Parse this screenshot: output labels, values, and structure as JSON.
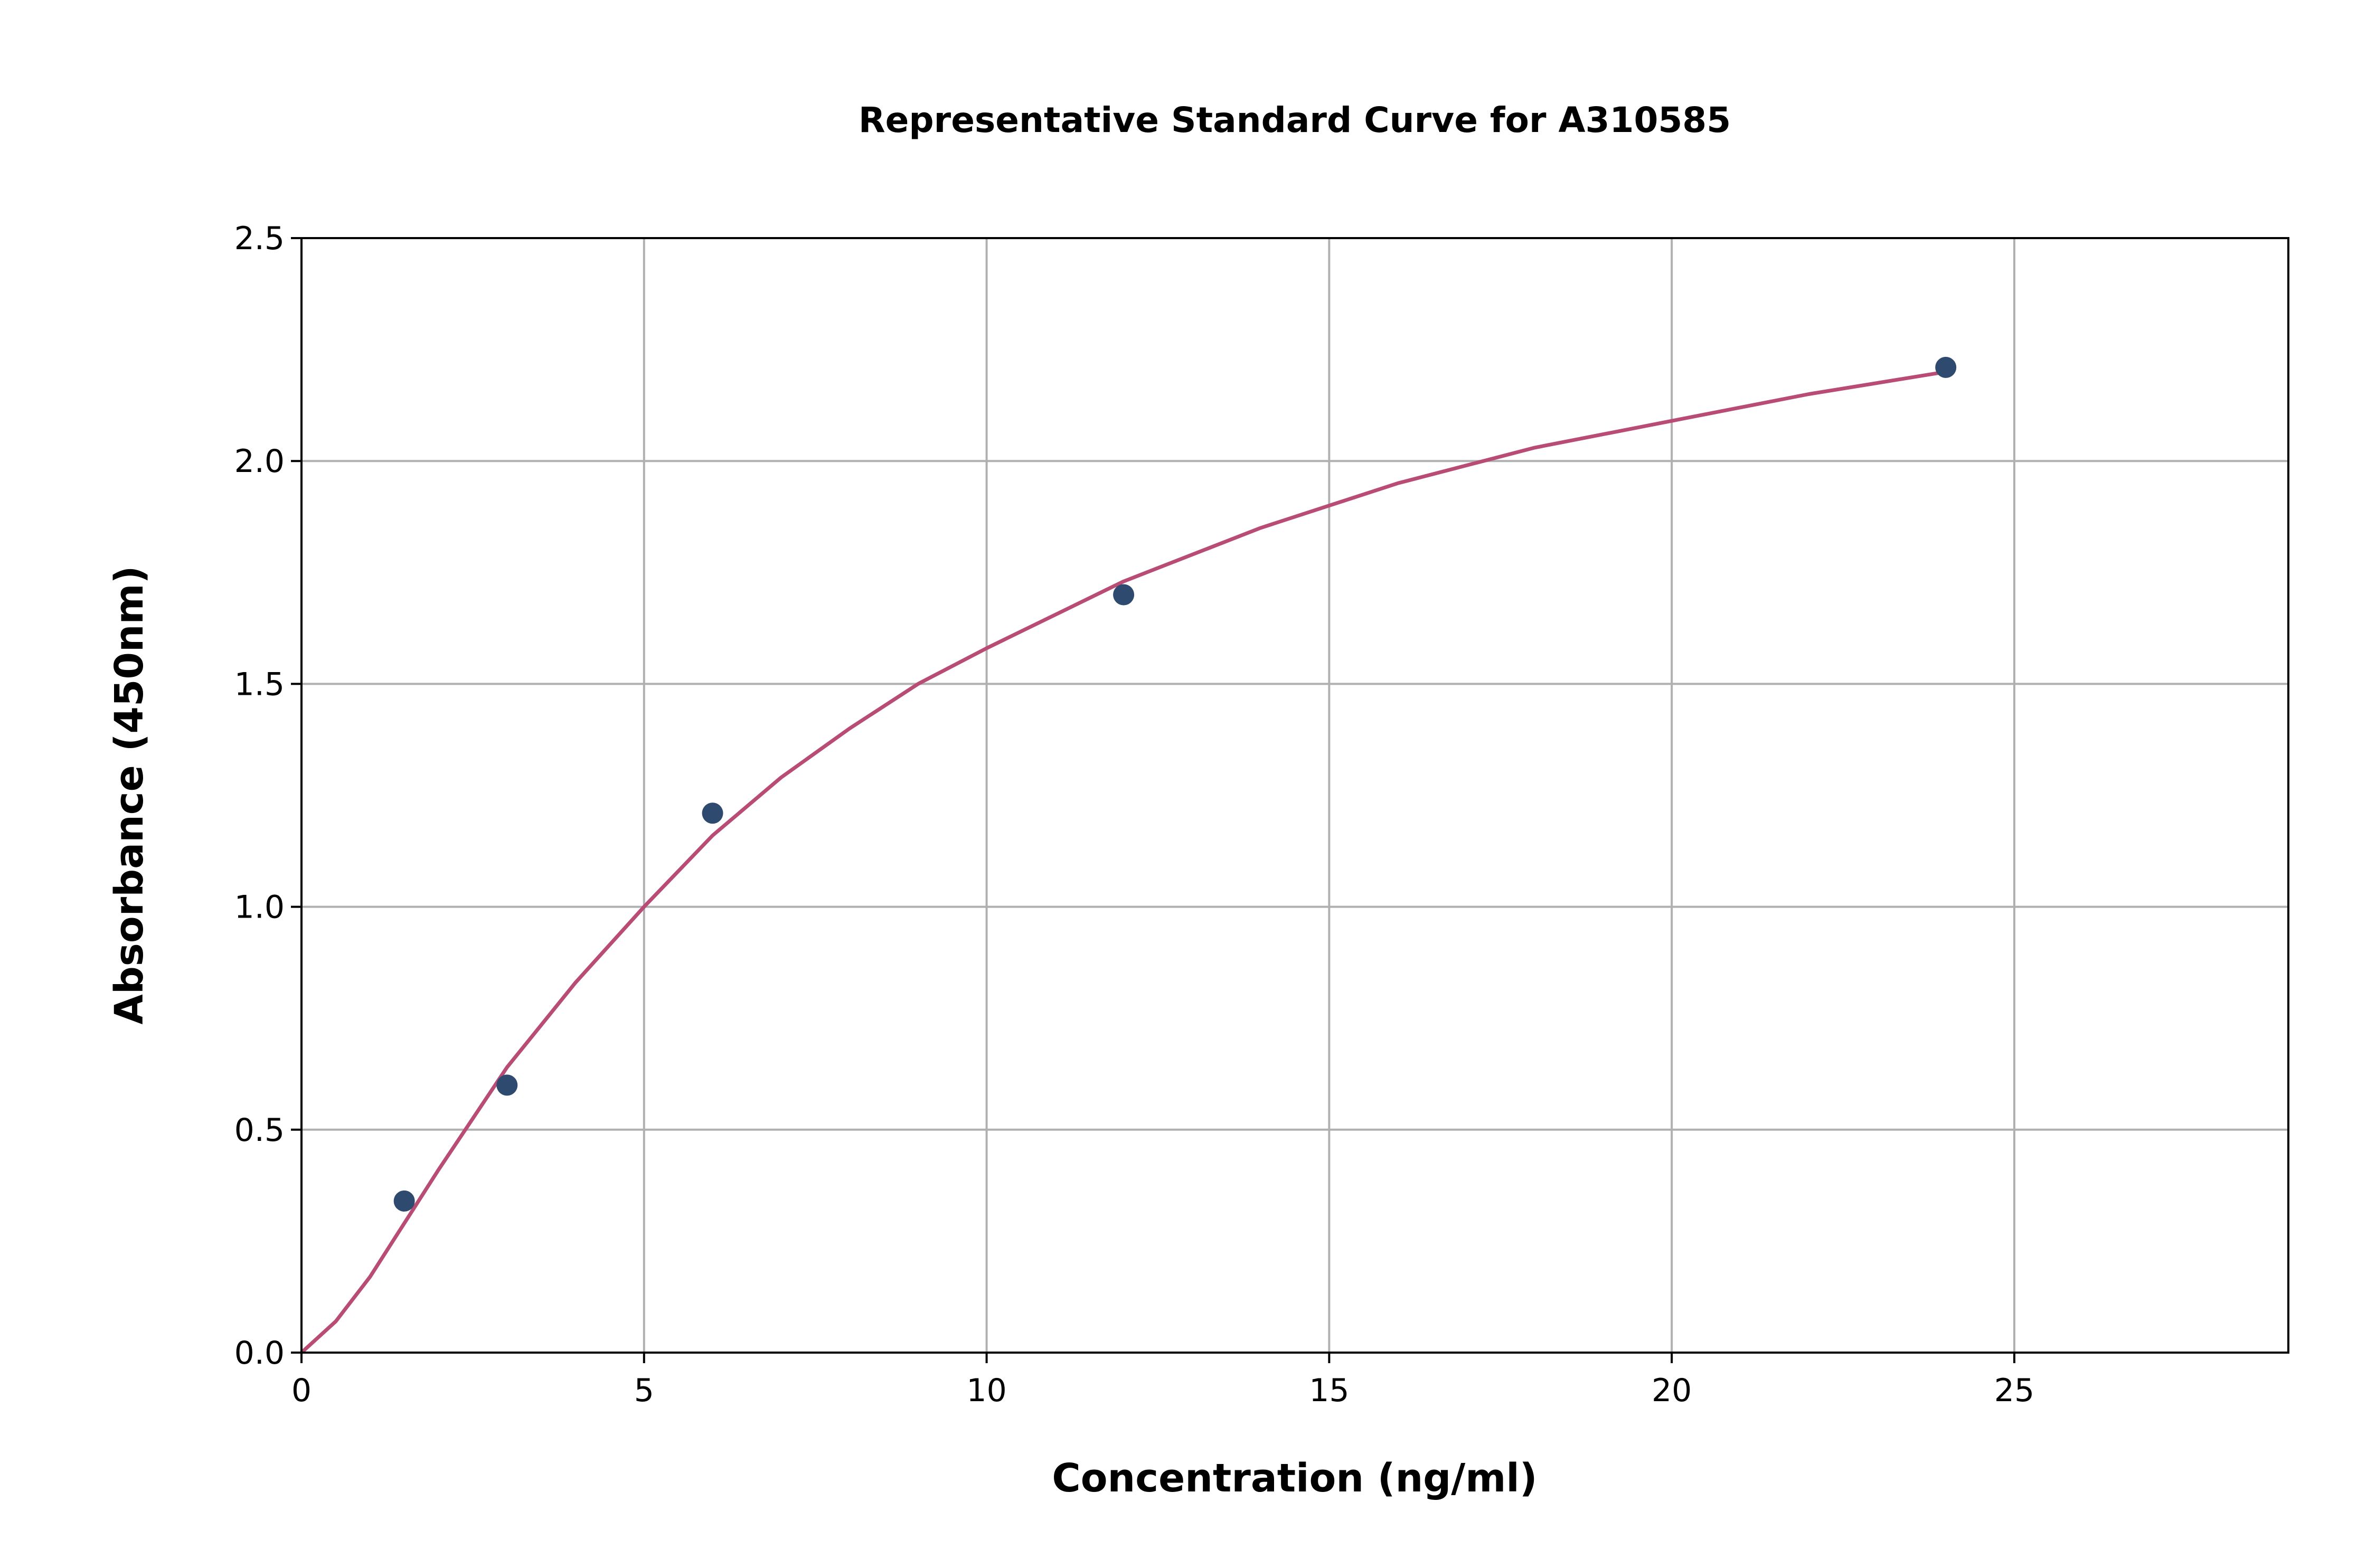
{
  "chart_data": {
    "type": "scatter",
    "title": "Representative Standard Curve for A310585",
    "x_label": "Concentration (ng/ml)",
    "y_label": "Absorbance (450nm)",
    "points": {
      "color": "#2e4a6e",
      "x": [
        1.5,
        3,
        6,
        12,
        24
      ],
      "y": [
        0.34,
        0.6,
        1.21,
        1.7,
        2.21
      ]
    },
    "curve": {
      "color": "#b84c74",
      "x": [
        0,
        0.5,
        1,
        2,
        3,
        4,
        5,
        6,
        7,
        8,
        9,
        10,
        12,
        14,
        16,
        18,
        20,
        22,
        24
      ],
      "y": [
        0,
        0.07,
        0.17,
        0.41,
        0.64,
        0.83,
        1.0,
        1.16,
        1.29,
        1.4,
        1.5,
        1.58,
        1.73,
        1.85,
        1.95,
        2.03,
        2.09,
        2.15,
        2.2
      ]
    },
    "xlim": [
      0,
      29
    ],
    "ylim": [
      0,
      2.5
    ],
    "xticks": [
      0,
      5,
      10,
      15,
      20,
      25
    ],
    "yticks": [
      {
        "value": 0,
        "label": "0.0"
      },
      0.5,
      {
        "value": 1,
        "label": "1.0"
      },
      1.5,
      {
        "value": 2,
        "label": "2.0"
      },
      2.5
    ],
    "grid": true
  }
}
